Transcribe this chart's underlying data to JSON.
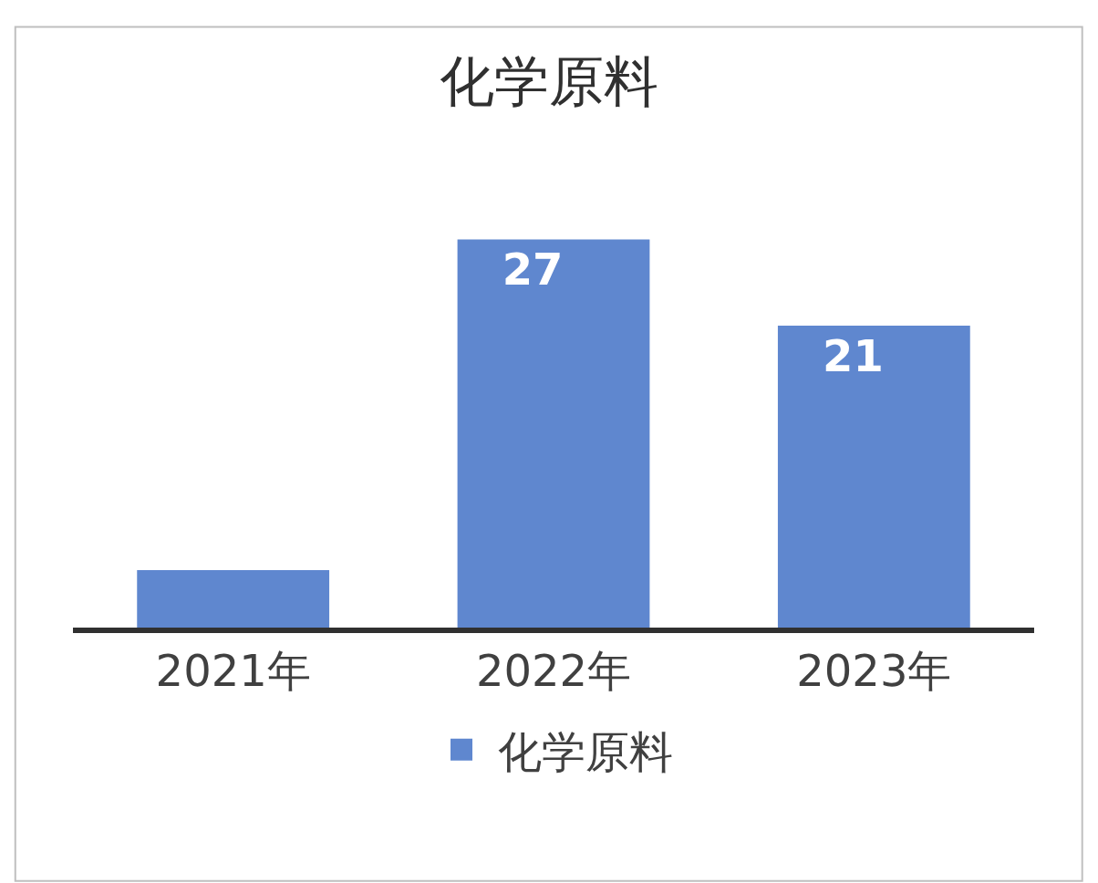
{
  "chart_data": {
    "type": "bar",
    "title": "化学原料",
    "categories": [
      "2021年",
      "2022年",
      "2023年"
    ],
    "series": [
      {
        "name": "化学原料",
        "color": "#5f87cf",
        "values": [
          4,
          27,
          21
        ],
        "value_labels": [
          null,
          "27",
          "21"
        ]
      }
    ],
    "legend": "bottom",
    "tick_labels": "x"
  }
}
